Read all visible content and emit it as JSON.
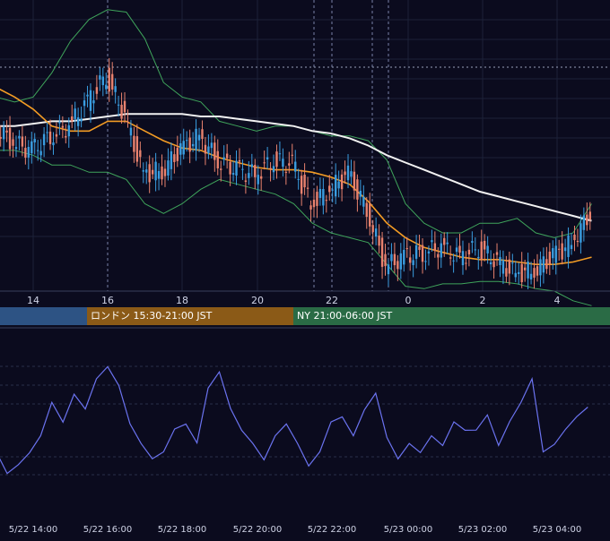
{
  "chart_data": [
    {
      "type": "candlestick",
      "overlays": [
        "bollinger-bands",
        "moving-average-orange",
        "moving-average-white"
      ],
      "x_tick_labels": [
        "14",
        "16",
        "18",
        "20",
        "22",
        "0",
        "2",
        "4"
      ],
      "grid": true,
      "colors": {
        "up": "#3a9de0",
        "down": "#e9826e",
        "bands": "#3fa45b",
        "ma_short": "#f39c24",
        "ma_long": "#f2f2f2",
        "background": "#0b0b1e",
        "grid": "#1d2238"
      },
      "x": [
        13.0,
        13.5,
        14.0,
        14.5,
        15.0,
        15.5,
        16.0,
        16.5,
        17.0,
        17.5,
        18.0,
        18.5,
        19.0,
        19.5,
        20.0,
        20.5,
        21.0,
        21.5,
        22.0,
        22.5,
        23.0,
        23.5,
        24.0,
        24.5,
        25.0,
        25.5,
        26.0,
        26.5,
        27.0,
        27.5,
        28.0,
        28.5,
        29.0
      ],
      "close": [
        0.62,
        0.55,
        0.52,
        0.58,
        0.62,
        0.72,
        0.83,
        0.66,
        0.42,
        0.44,
        0.52,
        0.58,
        0.48,
        0.44,
        0.42,
        0.48,
        0.46,
        0.3,
        0.36,
        0.42,
        0.28,
        0.04,
        0.08,
        0.1,
        0.12,
        0.08,
        0.12,
        0.06,
        0.01,
        0.03,
        0.08,
        0.14,
        0.26
      ],
      "bollinger_upper": [
        0.74,
        0.72,
        0.74,
        0.84,
        0.97,
        1.06,
        1.1,
        1.09,
        0.98,
        0.8,
        0.74,
        0.72,
        0.64,
        0.62,
        0.6,
        0.62,
        0.62,
        0.6,
        0.58,
        0.58,
        0.56,
        0.48,
        0.3,
        0.22,
        0.18,
        0.18,
        0.22,
        0.22,
        0.24,
        0.18,
        0.16,
        0.18,
        0.3
      ],
      "bollinger_lower": [
        0.52,
        0.52,
        0.5,
        0.46,
        0.46,
        0.43,
        0.43,
        0.4,
        0.3,
        0.26,
        0.3,
        0.36,
        0.4,
        0.38,
        0.36,
        0.34,
        0.3,
        0.22,
        0.18,
        0.16,
        0.14,
        0.05,
        -0.04,
        -0.05,
        -0.03,
        -0.03,
        -0.02,
        -0.02,
        -0.03,
        -0.05,
        -0.06,
        -0.1,
        -0.12
      ],
      "ma_short": [
        0.78,
        0.74,
        0.69,
        0.62,
        0.6,
        0.6,
        0.64,
        0.64,
        0.6,
        0.56,
        0.53,
        0.52,
        0.49,
        0.47,
        0.45,
        0.44,
        0.44,
        0.43,
        0.41,
        0.38,
        0.31,
        0.22,
        0.16,
        0.12,
        0.1,
        0.08,
        0.07,
        0.07,
        0.06,
        0.05,
        0.05,
        0.06,
        0.08
      ],
      "ma_long": [
        0.62,
        0.62,
        0.63,
        0.64,
        0.64,
        0.65,
        0.66,
        0.67,
        0.67,
        0.67,
        0.67,
        0.66,
        0.66,
        0.65,
        0.64,
        0.63,
        0.62,
        0.6,
        0.59,
        0.57,
        0.54,
        0.5,
        0.47,
        0.44,
        0.41,
        0.38,
        0.35,
        0.33,
        0.31,
        0.29,
        0.27,
        0.25,
        0.23
      ],
      "ylim": [
        -0.06,
        1.14
      ]
    },
    {
      "type": "line",
      "x_tick_labels": [
        "5/22 14:00",
        "5/22 16:00",
        "5/22 18:00",
        "5/22 20:00",
        "5/22 22:00",
        "5/23 00:00",
        "5/23 02:00",
        "5/23 04:00"
      ],
      "grid": true,
      "color": "#6b73f0",
      "x": [
        13.0,
        13.3,
        13.6,
        13.9,
        14.2,
        14.5,
        14.8,
        15.1,
        15.4,
        15.7,
        16.0,
        16.3,
        16.6,
        16.9,
        17.2,
        17.5,
        17.8,
        18.1,
        18.4,
        18.7,
        19.0,
        19.3,
        19.6,
        19.9,
        20.2,
        20.5,
        20.8,
        21.1,
        21.4,
        21.7,
        22.0,
        22.3,
        22.6,
        22.9,
        23.2,
        23.5,
        23.8,
        24.1,
        24.4,
        24.7,
        25.0,
        25.3,
        25.6,
        25.9,
        26.2,
        26.5,
        26.8,
        27.1,
        27.4,
        27.7,
        28.0,
        28.3,
        28.6,
        28.9
      ],
      "values": [
        44,
        38,
        40,
        44,
        48,
        58,
        52,
        60,
        56,
        64,
        68,
        62,
        52,
        46,
        42,
        44,
        50,
        52,
        46,
        62,
        66,
        56,
        50,
        46,
        42,
        48,
        52,
        46,
        40,
        44,
        52,
        54,
        48,
        56,
        60,
        48,
        42,
        46,
        44,
        48,
        46,
        52,
        50,
        50,
        54,
        46,
        52,
        58,
        64,
        44,
        46,
        50,
        54,
        56
      ],
      "ylim": [
        30,
        75
      ]
    }
  ],
  "sessions": {
    "asia": "",
    "london": "ロンドン 15:30-21:00 JST",
    "ny": "NY 21:00-06:00 JST"
  }
}
